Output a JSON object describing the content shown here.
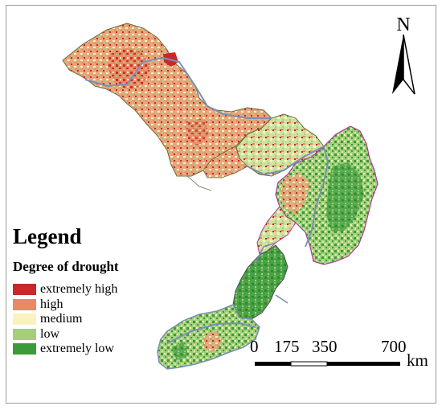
{
  "legend": {
    "title": "Legend",
    "subtitle": "Degree of drought",
    "items": [
      {
        "label": "extremely high",
        "color": "#c8282a"
      },
      {
        "label": "high",
        "color": "#e88a63"
      },
      {
        "label": "medium",
        "color": "#fbf2bd"
      },
      {
        "label": "low",
        "color": "#a3cf7a"
      },
      {
        "label": "extremely low",
        "color": "#3c9a3a"
      }
    ]
  },
  "north_arrow": {
    "letter": "N"
  },
  "scale_bar": {
    "ticks": [
      "0",
      "175",
      "350",
      "700"
    ],
    "unit": "km"
  },
  "colors": {
    "river": "#7a8fb5",
    "border_magenta": "#b0389e",
    "frame": "#9a9a9a"
  }
}
